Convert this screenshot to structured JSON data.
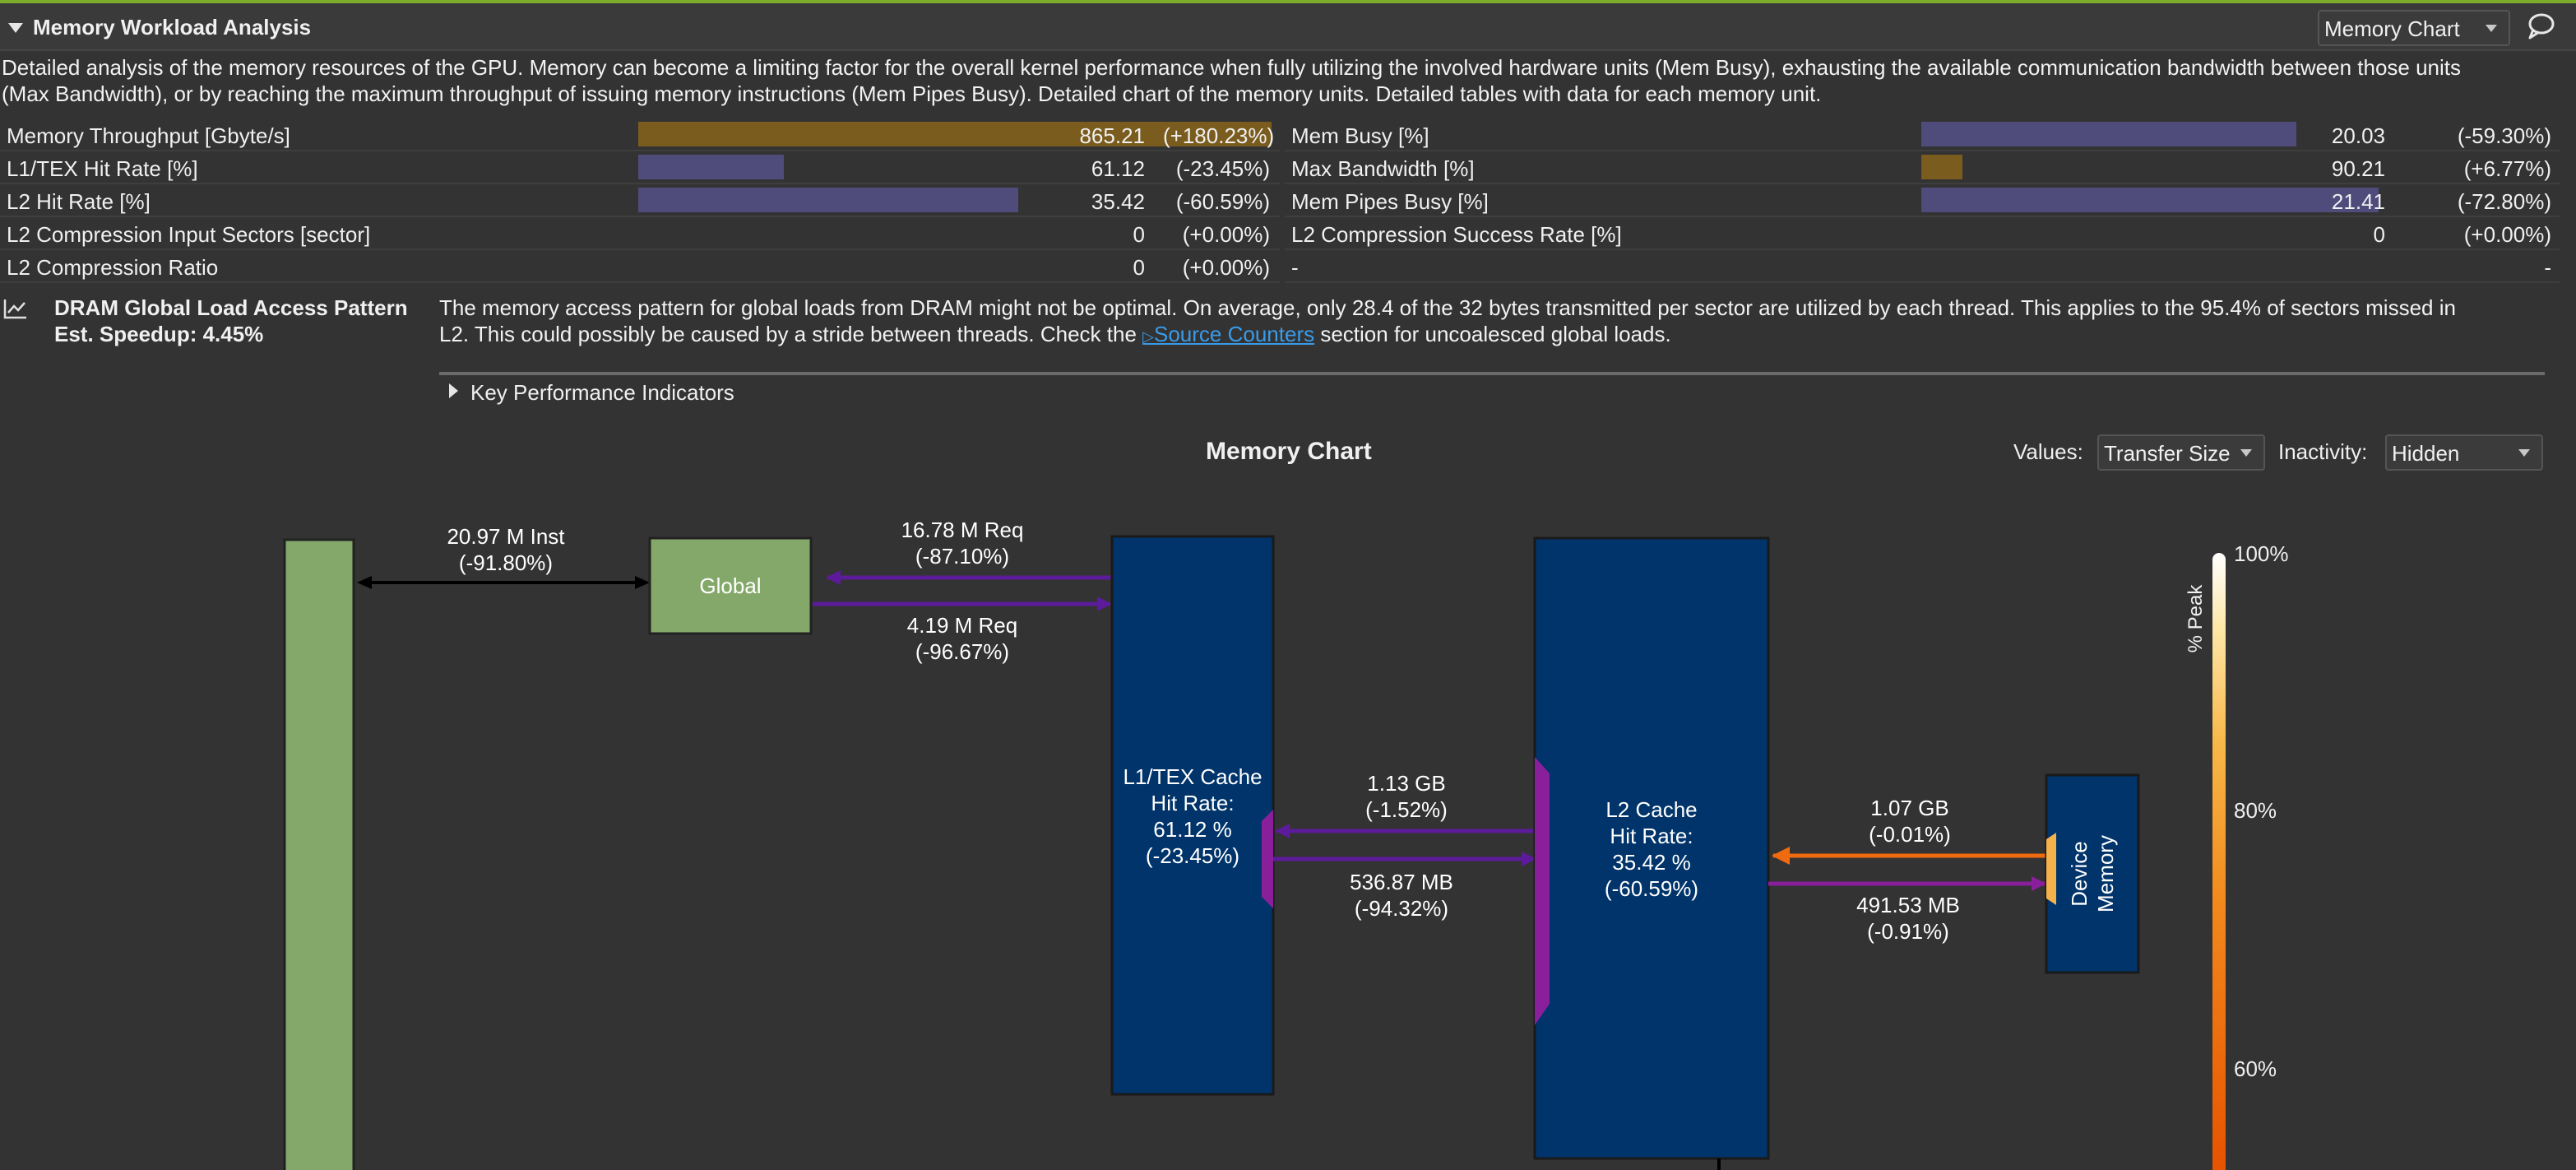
{
  "section": {
    "title": "Memory Workload Analysis",
    "view_dropdown": "Memory Chart",
    "description": "Detailed analysis of the memory resources of the GPU. Memory can become a limiting factor for the overall kernel performance when fully utilizing the involved hardware units (Mem Busy), exhausting the available communication bandwidth between those units (Max Bandwidth), or by reaching the maximum throughput of issuing memory instructions (Mem Pipes Busy). Detailed chart of the memory units. Detailed tables with data for each memory unit.",
    "description_lines": [
      "Detailed analysis of the memory resources of the GPU. Memory can become a limiting factor for the overall kernel performance when fully utilizing the involved hardware units (Mem Busy), exhausting the available communication bandwidth between those units",
      "(Max Bandwidth), or by reaching the maximum throughput of issuing memory instructions (Mem Pipes Busy). Detailed chart of the memory units. Detailed tables with data for each memory unit."
    ]
  },
  "metrics": {
    "left": [
      {
        "label": "Memory Throughput [Gbyte/s]",
        "value": "865.21",
        "delta": "(+180.23%)",
        "bar_fraction": 1.0,
        "bar_color": "#7a5c1e"
      },
      {
        "label": "L1/TEX Hit Rate [%]",
        "value": "61.12",
        "delta": "(-23.45%)",
        "bar_fraction": 0.23,
        "bar_color": "#4f4c7c"
      },
      {
        "label": "L2 Hit Rate [%]",
        "value": "35.42",
        "delta": "(-60.59%)",
        "bar_fraction": 0.6,
        "bar_color": "#4f4c7c"
      },
      {
        "label": "L2 Compression Input Sectors [sector]",
        "value": "0",
        "delta": "(+0.00%)",
        "bar_fraction": 0,
        "bar_color": "#4f4c7c"
      },
      {
        "label": "L2 Compression Ratio",
        "value": "0",
        "delta": "(+0.00%)",
        "bar_fraction": 0,
        "bar_color": "#4f4c7c"
      }
    ],
    "right": [
      {
        "label": "Mem Busy [%]",
        "value": "20.03",
        "delta": "(-59.30%)",
        "bar_fraction": 0.82,
        "bar_color": "#4f4c7c"
      },
      {
        "label": "Max Bandwidth [%]",
        "value": "90.21",
        "delta": "(+6.77%)",
        "bar_fraction": 0.09,
        "bar_color": "#7a5c1e"
      },
      {
        "label": "Mem Pipes Busy [%]",
        "value": "21.41",
        "delta": "(-72.80%)",
        "bar_fraction": 1.0,
        "bar_color": "#4f4c7c"
      },
      {
        "label": "L2 Compression Success Rate [%]",
        "value": "0",
        "delta": "(+0.00%)",
        "bar_fraction": 0,
        "bar_color": "#4f4c7c"
      },
      {
        "label": "-",
        "value": "",
        "delta": "-",
        "bar_fraction": 0,
        "bar_color": "#4f4c7c"
      }
    ]
  },
  "rule": {
    "title": "DRAM Global Load Access Pattern",
    "speedup": "Est. Speedup: 4.45%",
    "text_line1": "The memory access pattern for global loads from DRAM might not be optimal. On average, only 28.4 of the 32 bytes transmitted per sector are utilized by each thread. This applies to the 95.4% of sectors missed in",
    "text_line2_pre": "L2. This could possibly be caused by a stride between threads. Check the",
    "link": "Source Counters",
    "text_line2_post": "section for uncoalesced global loads.",
    "kpi_label": "Key Performance Indicators"
  },
  "chart": {
    "title": "Memory Chart",
    "values_label": "Values:",
    "values_selected": "Transfer Size",
    "inactivity_label": "Inactivity:",
    "inactivity_selected": "Hidden",
    "kernel_global": {
      "line1": "20.97 M Inst",
      "line2": "(-91.80%)"
    },
    "global_label": "Global",
    "global_l1_req": {
      "line1": "16.78 M Req",
      "line2": "(-87.10%)"
    },
    "global_l1_req2": {
      "line1": "4.19 M Req",
      "line2": "(-96.67%)"
    },
    "l1": {
      "line1": "L1/TEX Cache",
      "line2": "Hit Rate:",
      "line3": "61.12 %",
      "line4": "(-23.45%)"
    },
    "l1_l2_top": {
      "line1": "1.13 GB",
      "line2": "(-1.52%)"
    },
    "l1_l2_bottom": {
      "line1": "536.87 MB",
      "line2": "(-94.32%)"
    },
    "l2": {
      "line1": "L2 Cache",
      "line2": "Hit Rate:",
      "line3": "35.42 %",
      "line4": "(-60.59%)"
    },
    "l2_dev_top": {
      "line1": "1.07 GB",
      "line2": "(-0.01%)"
    },
    "l2_dev_bottom": {
      "line1": "491.53 MB",
      "line2": "(-0.91%)"
    },
    "device_memory": {
      "line1": "Device",
      "line2": "Memory"
    },
    "scale_label": "% Peak",
    "scale_ticks": [
      "100%",
      "80%",
      "60%"
    ]
  },
  "colors": {
    "accent_green": "#7dab2c",
    "kernel_green": "#84a86a",
    "unit_blue": "#00346a",
    "purple_arrow": "#5b1b9a",
    "magenta_arrow": "#8a1f9c",
    "orange_arrow": "#f06a10",
    "link_blue": "#3a9be8"
  }
}
